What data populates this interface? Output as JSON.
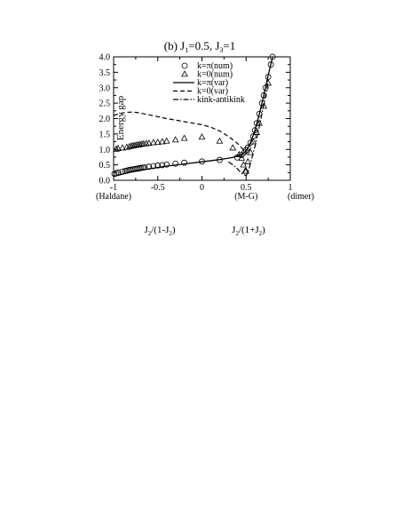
{
  "chart_data": {
    "type": "scatter",
    "title": "(b) J1=0.5, J3=1",
    "title_parts": {
      "label": "(b) J",
      "sub1": "1",
      "mid": "=0.5, J",
      "sub2": "3",
      "end": "=1"
    },
    "ylabel": "Energy gap",
    "xlabel_left": {
      "main": "J",
      "sub": "2",
      "rest": "/(1-J",
      "sub2": "2",
      "end": ")"
    },
    "xlabel_right": {
      "main": "J",
      "sub": "2",
      "rest": "/(1+J",
      "sub2": "2",
      "end": ")"
    },
    "xlim": [
      -1,
      1
    ],
    "ylim": [
      0,
      4
    ],
    "x_ticks": [
      {
        "value": -1,
        "label": "-1"
      },
      {
        "value": -0.5,
        "label": "-0.5"
      },
      {
        "value": 0,
        "label": "0"
      },
      {
        "value": 0.5,
        "label": "0.5"
      },
      {
        "value": 1,
        "label": "1"
      }
    ],
    "y_ticks": [
      {
        "value": 0,
        "label": "0.0"
      },
      {
        "value": 0.5,
        "label": "0.5"
      },
      {
        "value": 1,
        "label": "1.0"
      },
      {
        "value": 1.5,
        "label": "1.5"
      },
      {
        "value": 2,
        "label": "2.0"
      },
      {
        "value": 2.5,
        "label": "2.5"
      },
      {
        "value": 3,
        "label": "3.0"
      },
      {
        "value": 3.5,
        "label": "3.5"
      },
      {
        "value": 4,
        "label": "4.0"
      }
    ],
    "x_annotations": [
      {
        "value": -1,
        "label": "(Haldane)"
      },
      {
        "value": 0.5,
        "label": "(M-G)"
      },
      {
        "value": 1,
        "label": "(dimer)"
      }
    ],
    "grid": false,
    "legend_position": "top-right",
    "legend": [
      {
        "label": "k=π(num)",
        "marker": "circle"
      },
      {
        "label": "k=0(num)",
        "marker": "triangle"
      },
      {
        "label": "k=π(var)",
        "line": "solid"
      },
      {
        "label": "k=0(var)",
        "line": "dashed"
      },
      {
        "label": "kink-antikink",
        "line": "dashdot"
      }
    ],
    "series": [
      {
        "name": "k=π(num)",
        "style": "circle",
        "x": [
          -0.99,
          -0.97,
          -0.95,
          -0.9,
          -0.87,
          -0.85,
          -0.83,
          -0.81,
          -0.79,
          -0.77,
          -0.75,
          -0.73,
          -0.71,
          -0.69,
          -0.67,
          -0.65,
          -0.6,
          -0.55,
          -0.5,
          -0.45,
          -0.4,
          -0.3,
          -0.2,
          0.0,
          0.2,
          0.4,
          0.45,
          0.48,
          0.5,
          0.52,
          0.55,
          0.58,
          0.6,
          0.62,
          0.65,
          0.68,
          0.7,
          0.72,
          0.75,
          0.78,
          0.8
        ],
        "y": [
          0.21,
          0.23,
          0.25,
          0.28,
          0.3,
          0.31,
          0.33,
          0.34,
          0.35,
          0.36,
          0.37,
          0.38,
          0.39,
          0.4,
          0.41,
          0.42,
          0.44,
          0.46,
          0.48,
          0.49,
          0.51,
          0.54,
          0.57,
          0.61,
          0.66,
          0.74,
          0.82,
          0.9,
          0.98,
          1.06,
          1.22,
          1.42,
          1.62,
          1.85,
          2.15,
          2.5,
          2.75,
          3.0,
          3.35,
          3.75,
          4.0
        ]
      },
      {
        "name": "k=0(num)",
        "style": "triangle",
        "x": [
          -0.97,
          -0.95,
          -0.9,
          -0.85,
          -0.82,
          -0.8,
          -0.78,
          -0.76,
          -0.74,
          -0.72,
          -0.7,
          -0.68,
          -0.66,
          -0.63,
          -0.6,
          -0.55,
          -0.5,
          -0.45,
          -0.4,
          -0.3,
          -0.2,
          0.0,
          0.2,
          0.35,
          0.42,
          0.45,
          0.47,
          0.49,
          0.5,
          0.52,
          0.55,
          0.58,
          0.62,
          0.65,
          0.7,
          0.75
        ],
        "y": [
          1.01,
          1.03,
          1.05,
          1.07,
          1.09,
          1.11,
          1.12,
          1.13,
          1.14,
          1.15,
          1.16,
          1.17,
          1.18,
          1.19,
          1.2,
          1.22,
          1.23,
          1.25,
          1.27,
          1.31,
          1.36,
          1.4,
          1.27,
          1.05,
          0.83,
          0.72,
          0.5,
          0.3,
          0.3,
          0.6,
          0.9,
          1.25,
          1.55,
          1.85,
          2.4,
          3.15
        ]
      },
      {
        "name": "k=π(var)",
        "style": "solid",
        "x": [
          -1.0,
          -0.9,
          -0.8,
          -0.6,
          -0.4,
          -0.2,
          0.0,
          0.2,
          0.35,
          0.42,
          0.45,
          0.48,
          0.5,
          0.52,
          0.55,
          0.6,
          0.65,
          0.7,
          0.75,
          0.8
        ],
        "y": [
          0.12,
          0.2,
          0.27,
          0.37,
          0.46,
          0.53,
          0.6,
          0.67,
          0.74,
          0.8,
          0.84,
          0.9,
          0.96,
          1.05,
          1.22,
          1.62,
          2.15,
          2.75,
          3.4,
          4.0
        ]
      },
      {
        "name": "k=0(var)",
        "style": "dashed",
        "x": [
          -1.0,
          -0.95,
          -0.9,
          -0.85,
          -0.8,
          -0.75,
          -0.7,
          -0.6,
          -0.5,
          -0.4,
          -0.3,
          -0.2,
          -0.1,
          0.0,
          0.1,
          0.2,
          0.3,
          0.38,
          0.42,
          0.45,
          0.48,
          0.5
        ],
        "y": [
          2.1,
          2.15,
          2.18,
          2.2,
          2.21,
          2.2,
          2.18,
          2.12,
          2.06,
          2.0,
          1.95,
          1.9,
          1.85,
          1.8,
          1.72,
          1.6,
          1.42,
          1.25,
          1.15,
          1.05,
          0.95,
          0.85
        ]
      },
      {
        "name": "kink-antikink",
        "style": "dashdot",
        "x": [
          0.3,
          0.35,
          0.4,
          0.45,
          0.5,
          0.52,
          0.55,
          0.6,
          0.65,
          0.7,
          0.75
        ],
        "y": [
          0.6,
          0.5,
          0.38,
          0.22,
          0.15,
          0.25,
          0.55,
          1.1,
          1.75,
          2.45,
          3.2
        ]
      }
    ]
  }
}
